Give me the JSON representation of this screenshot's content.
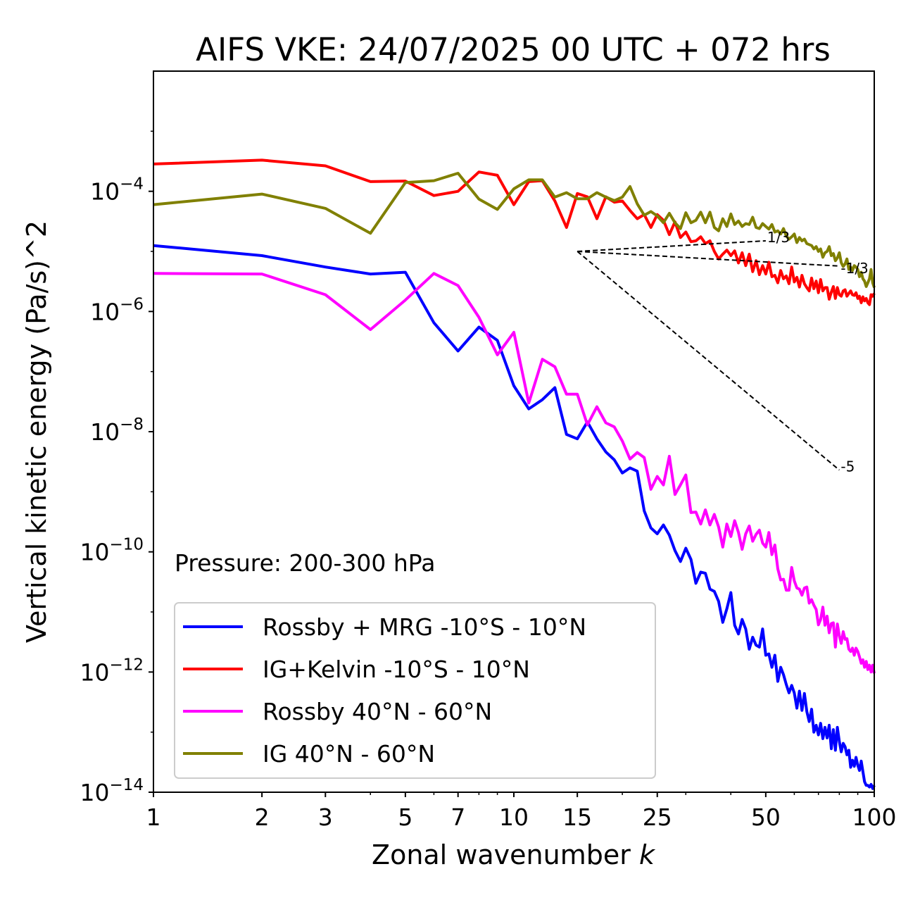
{
  "chart_data": {
    "type": "line",
    "title": "AIFS VKE: 24/07/2025 00 UTC + 072 hrs",
    "xlabel": "Zonal wavenumber k",
    "ylabel": "Vertical kinetic energy (Pa/s)^2",
    "xscale": "log",
    "yscale": "log",
    "xlim": [
      1,
      100
    ],
    "ylim": [
      1e-14,
      0.01
    ],
    "x_ticks": [
      1,
      2,
      3,
      5,
      7,
      10,
      15,
      25,
      50,
      100
    ],
    "x_tick_labels": [
      "1",
      "2",
      "3",
      "5",
      "7",
      "10",
      "15",
      "25",
      "50",
      "100"
    ],
    "y_ticks": [
      {
        "value": 0.0001,
        "base": "10",
        "exp": "−4"
      },
      {
        "value": 1e-06,
        "base": "10",
        "exp": "−6"
      },
      {
        "value": 1e-08,
        "base": "10",
        "exp": "−8"
      },
      {
        "value": 1e-10,
        "base": "10",
        "exp": "−10"
      },
      {
        "value": 1e-12,
        "base": "10",
        "exp": "−12"
      },
      {
        "value": 1e-14,
        "base": "10",
        "exp": "−14"
      }
    ],
    "grid": false,
    "legend_position": "lower-left",
    "annotation": "Pressure: 200-300 hPa",
    "reference_slopes": [
      {
        "label": "1/3",
        "from": [
          15,
          1e-05
        ],
        "to": [
          50,
          1.5e-05
        ]
      },
      {
        "label": "-1/3",
        "from": [
          15,
          1e-05
        ],
        "to": [
          80,
          5.7e-06
        ]
      },
      {
        "label": "-5",
        "from": [
          15,
          1e-05
        ],
        "to": [
          80,
          2.3e-09
        ]
      }
    ],
    "series": [
      {
        "name": "Rossby + MRG -10°S - 10°N",
        "color": "#0000ff",
        "x": [
          1,
          2,
          3,
          4,
          5,
          6,
          7,
          8,
          9,
          10,
          11,
          12,
          13,
          14,
          15,
          16,
          17,
          18,
          19,
          20,
          21,
          22,
          23,
          24,
          25,
          26,
          27,
          28,
          29,
          30,
          31,
          32,
          33,
          34,
          35,
          36,
          37,
          38,
          39,
          40,
          41,
          42,
          43,
          44,
          45,
          46,
          47,
          48,
          49,
          50,
          51,
          52,
          53,
          54,
          55,
          56,
          57,
          58,
          59,
          60,
          61,
          62,
          63,
          64,
          65,
          66,
          67,
          68,
          69,
          70,
          71,
          72,
          73,
          74,
          75,
          76,
          77,
          78,
          79,
          80,
          81,
          82,
          83,
          84,
          85,
          86,
          87,
          88,
          89,
          90,
          91,
          92,
          93,
          94,
          95,
          96,
          97,
          98,
          99,
          100
        ],
        "y": [
          1.25e-05,
          8.5e-06,
          5.5e-06,
          4.2e-06,
          4.5e-06,
          6.5e-07,
          2.2e-07,
          5.5e-07,
          3.3e-07,
          5.8e-08,
          2.4e-08,
          3.4e-08,
          5.4e-08,
          9e-09,
          7.6e-09,
          1.45e-08,
          7.6e-09,
          4.6e-09,
          3.4e-09,
          2.05e-09,
          2.5e-09,
          2.2e-09,
          4.8e-10,
          2.5e-10,
          2e-10,
          2.8e-10,
          1.9e-10,
          1.05e-10,
          6.9e-11,
          1.15e-10,
          7.5e-11,
          3e-11,
          4.6e-11,
          4.4e-11,
          2.4e-11,
          2.2e-11,
          1.5e-11,
          6.7e-12,
          1.13e-11,
          2.1e-11,
          6e-12,
          4.3e-12,
          7.5e-12,
          5.2e-12,
          2.4e-12,
          3.8e-12,
          2.8e-12,
          2.6e-12,
          5.2e-12,
          1.9e-12,
          2e-12,
          1.2e-12,
          1.9e-12,
          7e-13,
          1.2e-12,
          9e-13,
          6.2e-13,
          4.5e-13,
          6e-13,
          4.5e-13,
          2.5e-13,
          4.8e-13,
          2.3e-13,
          4.4e-13,
          2.2e-13,
          1.5e-13,
          2.4e-13,
          1e-13,
          1.3e-13,
          9e-14,
          1.4e-13,
          7.8e-14,
          1.2e-13,
          8e-14,
          1.3e-13,
          5.3e-14,
          1.1e-13,
          5e-14,
          1.2e-13,
          7e-14,
          4.7e-14,
          6.5e-14,
          5.7e-14,
          4.2e-14,
          5e-14,
          2.6e-14,
          3.4e-14,
          2.7e-14,
          3.8e-14,
          2.8e-14,
          2.3e-14,
          3.3e-14,
          2.2e-14,
          1.5e-14,
          1.3e-14,
          1.3e-14,
          1.22e-14,
          1.35e-14,
          1.15e-14,
          1.3e-14
        ]
      },
      {
        "name": "IG+Kelvin -10°S - 10°N",
        "color": "#ff0000",
        "x": [
          1,
          2,
          3,
          4,
          5,
          6,
          7,
          8,
          9,
          10,
          11,
          12,
          13,
          14,
          15,
          16,
          17,
          18,
          19,
          20,
          21,
          22,
          23,
          24,
          25,
          26,
          27,
          28,
          29,
          30,
          31,
          32,
          33,
          34,
          35,
          36,
          37,
          38,
          39,
          40,
          41,
          42,
          43,
          44,
          45,
          46,
          47,
          48,
          49,
          50,
          51,
          52,
          53,
          54,
          55,
          56,
          57,
          58,
          59,
          60,
          61,
          62,
          63,
          64,
          65,
          66,
          67,
          68,
          69,
          70,
          71,
          72,
          73,
          74,
          75,
          76,
          77,
          78,
          79,
          80,
          81,
          82,
          83,
          84,
          85,
          86,
          87,
          88,
          89,
          90,
          91,
          92,
          93,
          94,
          95,
          96,
          97,
          98,
          99,
          100
        ],
        "y": [
          0.000285,
          0.00033,
          0.000265,
          0.000145,
          0.000148,
          8.5e-05,
          0.0001,
          0.00021,
          0.000185,
          6e-05,
          0.000145,
          0.00015,
          6.9e-05,
          2.5e-05,
          9.2e-05,
          8.1e-05,
          3.5e-05,
          8.1e-05,
          6.6e-05,
          6.9e-05,
          4.8e-05,
          3.5e-05,
          4.1e-05,
          2.5e-05,
          4.1e-05,
          3.3e-05,
          1.9e-05,
          3.1e-05,
          1.7e-05,
          2.1e-05,
          1.45e-05,
          1.5e-05,
          1.75e-05,
          1.35e-05,
          1.5e-05,
          1e-05,
          7.5e-06,
          9e-06,
          1.05e-05,
          8.5e-06,
          1.02e-05,
          6.4e-06,
          9.5e-06,
          5.8e-06,
          9e-06,
          4.6e-06,
          7e-06,
          4.1e-06,
          5.8e-06,
          4.2e-06,
          6.6e-06,
          3.8e-06,
          4e-06,
          3e-06,
          4.8e-06,
          3.5e-06,
          3.9e-06,
          2.9e-06,
          5.5e-06,
          3.1e-06,
          3.7e-06,
          2.55e-06,
          4e-06,
          2.9e-06,
          2.5e-06,
          2.2e-06,
          3.6e-06,
          2.4e-06,
          3.2e-06,
          2.05e-06,
          3.4e-06,
          2.2e-06,
          2.5e-06,
          2.5e-06,
          1.6e-06,
          2.1e-06,
          2.6e-06,
          1.65e-06,
          2.5e-06,
          1.9e-06,
          1.8e-06,
          2.2e-06,
          2.3e-06,
          1.8e-06,
          2e-06,
          2.2e-06,
          1.9e-06,
          1.85e-06,
          2.05e-06,
          1.65e-06,
          1.8e-06,
          1.4e-06,
          1.75e-06,
          1.5e-06,
          1.65e-06,
          1.4e-06,
          1.3e-06,
          1.9e-06,
          1.8e-06,
          2e-06
        ]
      },
      {
        "name": "Rossby 40°N - 60°N",
        "color": "#ff00ff",
        "x": [
          1,
          2,
          3,
          4,
          5,
          6,
          7,
          8,
          9,
          10,
          11,
          12,
          13,
          14,
          15,
          16,
          17,
          18,
          19,
          20,
          21,
          22,
          23,
          24,
          25,
          26,
          27,
          28,
          29,
          30,
          31,
          32,
          33,
          34,
          35,
          36,
          37,
          38,
          39,
          40,
          41,
          42,
          43,
          44,
          45,
          46,
          47,
          48,
          49,
          50,
          51,
          52,
          53,
          54,
          55,
          56,
          57,
          58,
          59,
          60,
          61,
          62,
          63,
          64,
          65,
          66,
          67,
          68,
          69,
          70,
          71,
          72,
          73,
          74,
          75,
          76,
          77,
          78,
          79,
          80,
          81,
          82,
          83,
          84,
          85,
          86,
          87,
          88,
          89,
          90,
          91,
          92,
          93,
          94,
          95,
          96,
          97,
          98,
          99,
          100
        ],
        "y": [
          4.3e-06,
          4.2e-06,
          1.9e-06,
          5e-07,
          1.55e-06,
          4.3e-06,
          2.7e-06,
          8e-07,
          1.9e-07,
          4.5e-07,
          3e-08,
          1.6e-07,
          1.2e-07,
          4.2e-08,
          4.2e-08,
          1.3e-08,
          2.6e-08,
          1.4e-08,
          1.2e-08,
          7e-09,
          3.5e-09,
          4.5e-09,
          3.7e-09,
          1.1e-09,
          1.8e-09,
          1.3e-09,
          3.9e-09,
          9e-10,
          1.3e-09,
          1.9e-09,
          4.5e-10,
          4.6e-10,
          2.9e-10,
          5e-10,
          2.8e-10,
          4.2e-10,
          2.6e-10,
          1.2e-10,
          2.9e-10,
          1.8e-10,
          3.3e-10,
          2.1e-10,
          1.1e-10,
          2e-10,
          2.7e-10,
          1.5e-10,
          1.95e-10,
          2.3e-10,
          1.4e-10,
          1.2e-10,
          2.1e-10,
          9e-11,
          1.3e-10,
          5.2e-11,
          3.4e-11,
          3.5e-11,
          2.3e-11,
          2.3e-11,
          5.5e-11,
          3.3e-11,
          2.5e-11,
          2.4e-11,
          1.9e-11,
          2.5e-11,
          2.6e-11,
          1.4e-11,
          1.6e-11,
          1.3e-11,
          1.1e-11,
          6.1e-12,
          7.5e-12,
          1.2e-11,
          6e-12,
          8.5e-12,
          4.5e-12,
          6.4e-12,
          6.6e-12,
          2.6e-12,
          6.3e-12,
          4e-12,
          3e-12,
          4.7e-12,
          3.5e-12,
          3.6e-12,
          2.4e-12,
          2.2e-12,
          2.5e-12,
          1.9e-12,
          2.5e-12,
          2.2e-12,
          1.8e-12,
          1.4e-12,
          1.6e-12,
          1.2e-12,
          1.5e-12,
          1.1e-12,
          1.3e-12,
          1e-12,
          1.3e-12,
          9.5e-13
        ]
      },
      {
        "name": "IG 40°N - 60°N",
        "color": "#808000",
        "x": [
          1,
          2,
          3,
          4,
          5,
          6,
          7,
          8,
          9,
          10,
          11,
          12,
          13,
          14,
          15,
          16,
          17,
          18,
          19,
          20,
          21,
          22,
          23,
          24,
          25,
          26,
          27,
          28,
          29,
          30,
          31,
          32,
          33,
          34,
          35,
          36,
          37,
          38,
          39,
          40,
          41,
          42,
          43,
          44,
          45,
          46,
          47,
          48,
          49,
          50,
          51,
          52,
          53,
          54,
          55,
          56,
          57,
          58,
          59,
          60,
          61,
          62,
          63,
          64,
          65,
          66,
          67,
          68,
          69,
          70,
          71,
          72,
          73,
          74,
          75,
          76,
          77,
          78,
          79,
          80,
          81,
          82,
          83,
          84,
          85,
          86,
          87,
          88,
          89,
          90,
          91,
          92,
          93,
          94,
          95,
          96,
          97,
          98,
          99,
          100
        ],
        "y": [
          6e-05,
          9e-05,
          5.2e-05,
          2e-05,
          0.00014,
          0.00015,
          0.0002,
          7.4e-05,
          5e-05,
          0.00011,
          0.000155,
          0.000155,
          8e-05,
          9.5e-05,
          7.5e-05,
          7.5e-05,
          9.5e-05,
          8e-05,
          7e-05,
          8e-05,
          0.00012,
          6.2e-05,
          4e-05,
          4.6e-05,
          3.9e-05,
          3e-05,
          4.3e-05,
          3e-05,
          2.4e-05,
          4.4e-05,
          3e-05,
          3.3e-05,
          4.5e-05,
          3e-05,
          4.5e-05,
          2.5e-05,
          2.2e-05,
          3.5e-05,
          2.6e-05,
          4.2e-05,
          2.8e-05,
          3.2e-05,
          2.6e-05,
          2.9e-05,
          2.8e-05,
          3.7e-05,
          2.5e-05,
          2.4e-05,
          2.9e-05,
          2.6e-05,
          2.35e-05,
          2.8e-05,
          2.1e-05,
          2.2e-05,
          1.95e-05,
          2.4e-05,
          1.8e-05,
          1.6e-05,
          1.75e-05,
          1.95e-05,
          1.4e-05,
          1.7e-05,
          1.5e-05,
          1.6e-05,
          1.35e-05,
          1.3e-05,
          1.25e-05,
          1.1e-05,
          1.2e-05,
          1e-05,
          1.1e-05,
          8e-06,
          9.5e-06,
          1e-05,
          1.2e-05,
          8.5e-06,
          9.2e-06,
          7e-06,
          7.8e-06,
          9.5e-06,
          6.5e-06,
          5.6e-06,
          6.2e-06,
          7.5e-06,
          5e-06,
          5.5e-06,
          4.8e-06,
          5.8e-06,
          5.5e-06,
          5e-06,
          3.8e-06,
          4.5e-06,
          3.5e-06,
          3.2e-06,
          2.6e-06,
          3e-06,
          3.5e-06,
          5e-06,
          3e-06,
          2.5e-06
        ]
      }
    ]
  }
}
